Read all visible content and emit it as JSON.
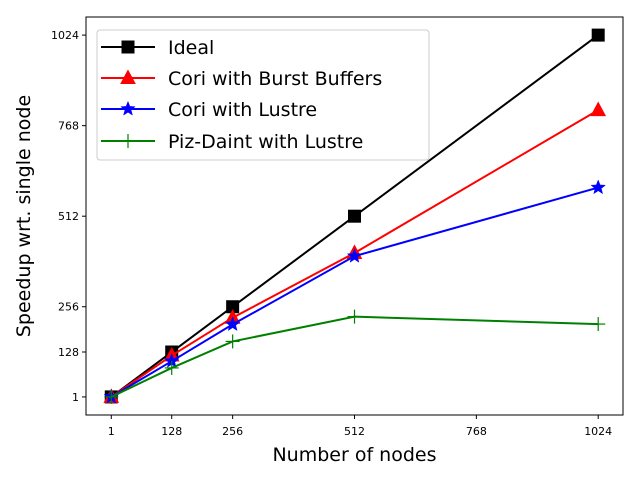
{
  "chart_data": {
    "type": "line",
    "title": "",
    "xlabel": "Number of nodes",
    "ylabel": "Speedup wrt. single node",
    "xlim": [
      -52.1,
      1076.1
    ],
    "ylim": [
      -50.1,
      1075.2
    ],
    "xticks": [
      1,
      128,
      256,
      512,
      768,
      1024
    ],
    "yticks": [
      1,
      128,
      256,
      512,
      768,
      1024
    ],
    "grid": false,
    "legend_position": "top-left",
    "series": [
      {
        "name": "Ideal",
        "color": "#000000",
        "marker": "square",
        "x": [
          1,
          128,
          256,
          512,
          1024
        ],
        "y": [
          1,
          128,
          256,
          512,
          1024
        ]
      },
      {
        "name": "Cori with Burst Buffers",
        "color": "#ff0000",
        "marker": "triangle",
        "x": [
          1,
          128,
          256,
          512,
          1024
        ],
        "y": [
          1,
          118,
          225,
          408,
          812
        ]
      },
      {
        "name": "Cori with Lustre",
        "color": "#0000ff",
        "marker": "star",
        "x": [
          1,
          128,
          256,
          512,
          1024
        ],
        "y": [
          1,
          102,
          206,
          399,
          593
        ]
      },
      {
        "name": "Piz-Daint with Lustre",
        "color": "#008000",
        "marker": "plus",
        "x": [
          1,
          128,
          256,
          512,
          1024
        ],
        "y": [
          1,
          83,
          158,
          228,
          207
        ]
      }
    ]
  }
}
